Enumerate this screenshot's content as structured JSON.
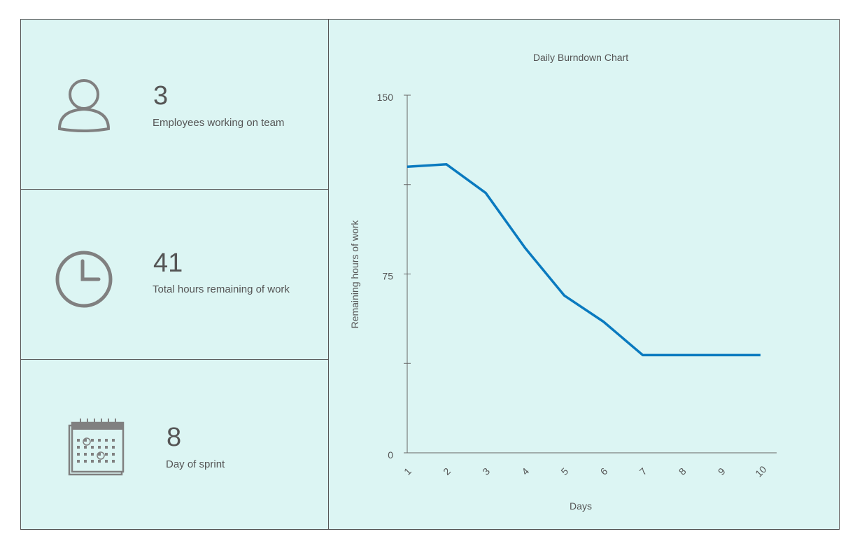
{
  "kpis": [
    {
      "value": "3",
      "label": "Employees working on team",
      "icon": "person-icon"
    },
    {
      "value": "41",
      "label": "Total hours remaining of work",
      "icon": "clock-icon"
    },
    {
      "value": "8",
      "label": "Day of sprint",
      "icon": "calendar-icon"
    }
  ],
  "colors": {
    "line": "#0a7abf",
    "panel": "#dcf5f3"
  },
  "chart_data": {
    "type": "line",
    "title": "Daily Burndown Chart",
    "xlabel": "Days",
    "ylabel": "Remaining hours of work",
    "categories": [
      "1",
      "2",
      "3",
      "4",
      "5",
      "6",
      "7",
      "8",
      "9",
      "10"
    ],
    "values": [
      120,
      121,
      109,
      86,
      66,
      55,
      41,
      41,
      41,
      41
    ],
    "ylim": [
      0,
      150
    ],
    "yticks": [
      0,
      37.5,
      75,
      112.5,
      150
    ],
    "ytick_labels": [
      "0",
      "",
      "75",
      "",
      "150"
    ],
    "grid": false
  }
}
